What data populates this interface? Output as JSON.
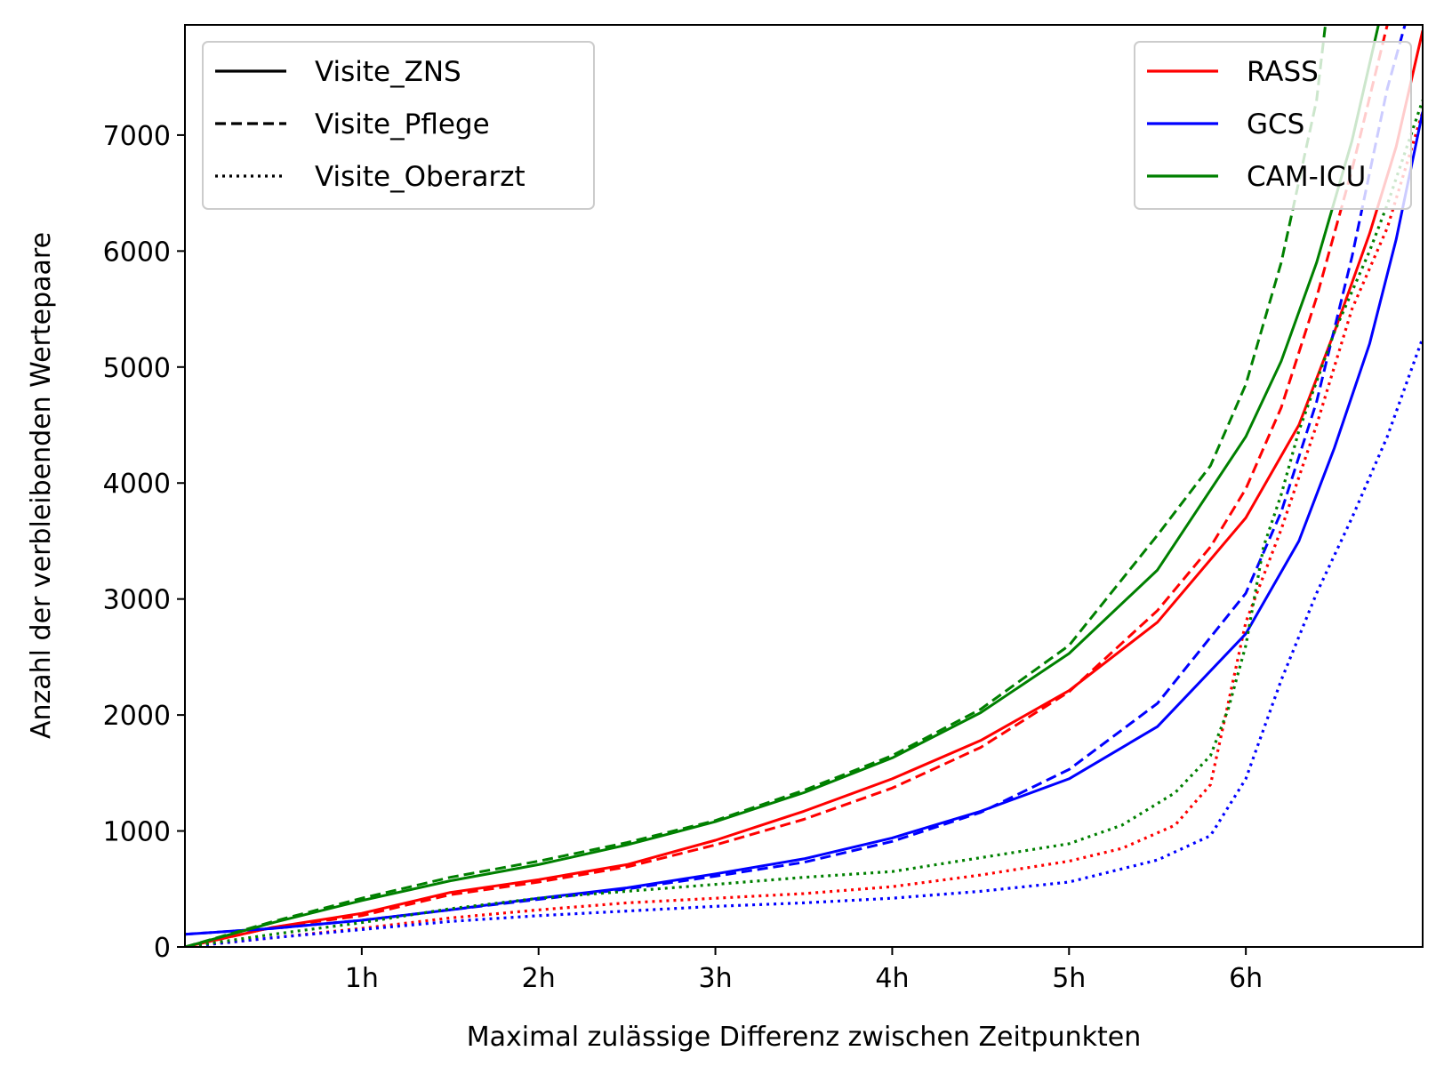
{
  "chart_data": {
    "type": "line",
    "xlabel": "Maximal zulässige Differenz zwischen Zeitpunkten",
    "ylabel": "Anzahl der verbleibenden Wertepaare",
    "xlim": [
      0,
      7
    ],
    "ylim": [
      0,
      7950
    ],
    "x_unit": "hours",
    "x_ticks": [
      1,
      2,
      3,
      4,
      5,
      6
    ],
    "x_tick_labels": [
      "1h",
      "2h",
      "3h",
      "4h",
      "5h",
      "6h"
    ],
    "y_ticks": [
      0,
      1000,
      2000,
      3000,
      4000,
      5000,
      6000,
      7000
    ],
    "y_tick_labels": [
      "0",
      "1000",
      "2000",
      "3000",
      "4000",
      "5000",
      "6000",
      "7000"
    ],
    "grid": false,
    "legend_style": {
      "position": "top-left",
      "entries": [
        {
          "label": "Visite_ZNS",
          "dash": "solid",
          "color": "#000000"
        },
        {
          "label": "Visite_Pflege",
          "dash": "dashed",
          "color": "#000000"
        },
        {
          "label": "Visite_Oberarzt",
          "dash": "dotted",
          "color": "#000000"
        }
      ]
    },
    "legend_color": {
      "position": "top-right",
      "entries": [
        {
          "label": "RASS",
          "color": "#ff0000"
        },
        {
          "label": "GCS",
          "color": "#0000ff"
        },
        {
          "label": "CAM-ICU",
          "color": "#008000"
        }
      ]
    },
    "series": [
      {
        "score": "RASS",
        "visit": "Visite_ZNS",
        "color": "#ff0000",
        "dash": "solid",
        "x": [
          0,
          0.5,
          1,
          1.5,
          2,
          2.5,
          3,
          3.5,
          4,
          4.5,
          5,
          5.5,
          6,
          6.3,
          6.5,
          6.7,
          6.85,
          7
        ],
        "y": [
          0,
          170,
          290,
          470,
          580,
          710,
          920,
          1170,
          1450,
          1780,
          2210,
          2800,
          3700,
          4500,
          5300,
          6150,
          6900,
          7900
        ]
      },
      {
        "score": "RASS",
        "visit": "Visite_Pflege",
        "color": "#ff0000",
        "dash": "dashed",
        "x": [
          0,
          0.5,
          1,
          1.5,
          2,
          2.5,
          3,
          3.5,
          4,
          4.5,
          5,
          5.5,
          5.8,
          6,
          6.2,
          6.4,
          6.6,
          6.8
        ],
        "y": [
          0,
          170,
          270,
          450,
          560,
          690,
          880,
          1100,
          1370,
          1720,
          2200,
          2900,
          3450,
          3950,
          4650,
          5600,
          6700,
          7950
        ]
      },
      {
        "score": "RASS",
        "visit": "Visite_Oberarzt",
        "color": "#ff0000",
        "dash": "dotted",
        "x": [
          0,
          0.5,
          1,
          1.5,
          2,
          2.5,
          3,
          3.5,
          4,
          4.5,
          5,
          5.3,
          5.6,
          5.8,
          6,
          6.2,
          6.4,
          6.6,
          6.8,
          7
        ],
        "y": [
          0,
          80,
          160,
          250,
          320,
          380,
          420,
          460,
          520,
          620,
          740,
          850,
          1050,
          1400,
          2800,
          3600,
          4500,
          5500,
          6200,
          7200
        ]
      },
      {
        "score": "GCS",
        "visit": "Visite_ZNS",
        "color": "#0000ff",
        "dash": "solid",
        "x": [
          0,
          0.5,
          1,
          1.5,
          2,
          2.5,
          3,
          3.5,
          4,
          4.5,
          5,
          5.5,
          6,
          6.3,
          6.5,
          6.7,
          6.85,
          7
        ],
        "y": [
          110,
          160,
          230,
          320,
          420,
          510,
          630,
          760,
          940,
          1170,
          1450,
          1900,
          2700,
          3500,
          4300,
          5200,
          6100,
          7200
        ]
      },
      {
        "score": "GCS",
        "visit": "Visite_Pflege",
        "color": "#0000ff",
        "dash": "dashed",
        "x": [
          0,
          0.5,
          1,
          1.5,
          2,
          2.5,
          3,
          3.5,
          4,
          4.5,
          5,
          5.5,
          6,
          6.2,
          6.4,
          6.6,
          6.8,
          6.9
        ],
        "y": [
          110,
          160,
          230,
          320,
          410,
          500,
          610,
          730,
          910,
          1160,
          1530,
          2100,
          3050,
          3750,
          4700,
          5950,
          7400,
          7950
        ]
      },
      {
        "score": "GCS",
        "visit": "Visite_Oberarzt",
        "color": "#0000ff",
        "dash": "dotted",
        "x": [
          0,
          0.5,
          1,
          1.5,
          2,
          2.5,
          3,
          3.5,
          4,
          4.5,
          5,
          5.5,
          5.8,
          6,
          6.2,
          6.4,
          6.6,
          6.8,
          7
        ],
        "y": [
          0,
          80,
          150,
          220,
          270,
          310,
          350,
          380,
          420,
          480,
          560,
          750,
          960,
          1450,
          2300,
          3050,
          3700,
          4400,
          5250
        ]
      },
      {
        "score": "CAM-ICU",
        "visit": "Visite_ZNS",
        "color": "#008000",
        "dash": "solid",
        "x": [
          0,
          0.5,
          1,
          1.5,
          2,
          2.5,
          3,
          3.5,
          4,
          4.5,
          5,
          5.5,
          6,
          6.2,
          6.4,
          6.6,
          6.75
        ],
        "y": [
          0,
          210,
          400,
          570,
          710,
          880,
          1080,
          1330,
          1630,
          2020,
          2530,
          3250,
          4400,
          5050,
          5900,
          6950,
          7950
        ]
      },
      {
        "score": "CAM-ICU",
        "visit": "Visite_Pflege",
        "color": "#008000",
        "dash": "dashed",
        "x": [
          0,
          0.5,
          1,
          1.5,
          2,
          2.5,
          3,
          3.5,
          4,
          4.5,
          5,
          5.5,
          5.8,
          6,
          6.2,
          6.4,
          6.45
        ],
        "y": [
          0,
          220,
          420,
          600,
          740,
          900,
          1090,
          1350,
          1650,
          2050,
          2600,
          3550,
          4150,
          4850,
          5900,
          7300,
          7950
        ]
      },
      {
        "score": "CAM-ICU",
        "visit": "Visite_Oberarzt",
        "color": "#008000",
        "dash": "dotted",
        "x": [
          0,
          0.5,
          1,
          1.5,
          2,
          2.5,
          3,
          3.5,
          4,
          4.5,
          5,
          5.3,
          5.6,
          5.8,
          5.9,
          6,
          6.1,
          6.2,
          6.3,
          6.5,
          6.7,
          6.8,
          7
        ],
        "y": [
          0,
          110,
          210,
          330,
          420,
          480,
          540,
          600,
          650,
          770,
          890,
          1050,
          1330,
          1650,
          2050,
          2600,
          3450,
          3900,
          4450,
          5300,
          6000,
          6400,
          7300
        ]
      }
    ]
  }
}
